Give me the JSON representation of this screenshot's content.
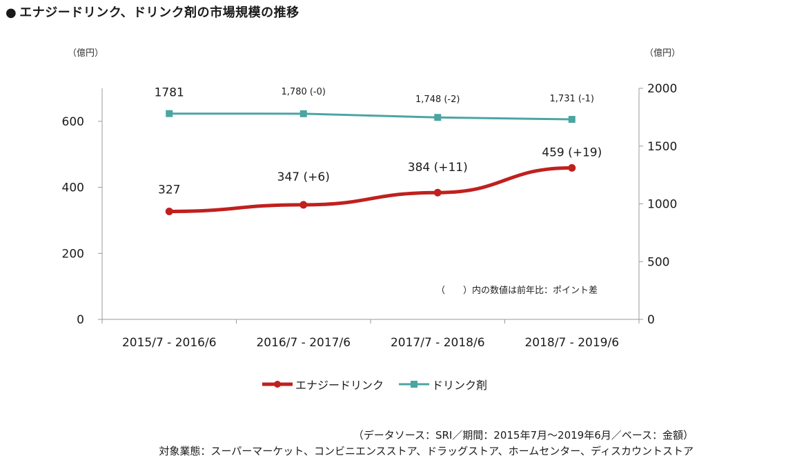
{
  "title": {
    "bullet": "●",
    "text": "エナジードリンク、ドリンク剤の市場規模の推移"
  },
  "units": {
    "left": "（億円）",
    "right": "（億円）"
  },
  "note": "（　　）内の数値は前年比：ポイント差",
  "footer": {
    "source": "（データソース：SRI／期間：2015年7月～2019年6月／ベース：金額）",
    "scope": "対象業態：スーパーマーケット、コンビニエンスストア、ドラッグストア、ホームセンター、ディスカウントストア"
  },
  "colors": {
    "energy": "#c0201e",
    "drink": "#4aa5a3",
    "axis": "#999999"
  },
  "chart_data": {
    "type": "line",
    "categories": [
      "2015/7 - 2016/6",
      "2016/7 - 2017/6",
      "2017/7 - 2018/6",
      "2018/7 - 2019/6"
    ],
    "y_left": {
      "ticks": [
        "0",
        "200",
        "400",
        "600"
      ],
      "ylim": [
        0,
        700
      ]
    },
    "y_right": {
      "ticks": [
        "0",
        "500",
        "1000",
        "1500",
        "2000"
      ],
      "ylim": [
        0,
        2000
      ]
    },
    "legend_placement": "bottom",
    "grid": false,
    "series": [
      {
        "name": "エナジードリンク",
        "axis": "left",
        "color": "#c0201e",
        "marker": "circle",
        "values": [
          327,
          347,
          384,
          459
        ],
        "labels": [
          "327",
          "347 (+6)",
          "384 (+11)",
          "459 (+19)"
        ]
      },
      {
        "name": "ドリンク剤",
        "axis": "right",
        "color": "#4aa5a3",
        "marker": "square",
        "values": [
          1781,
          1780,
          1748,
          1731
        ],
        "labels": [
          "1781",
          "1,780 (-0)",
          "1,748 (-2)",
          "1,731 (-1)"
        ]
      }
    ]
  }
}
